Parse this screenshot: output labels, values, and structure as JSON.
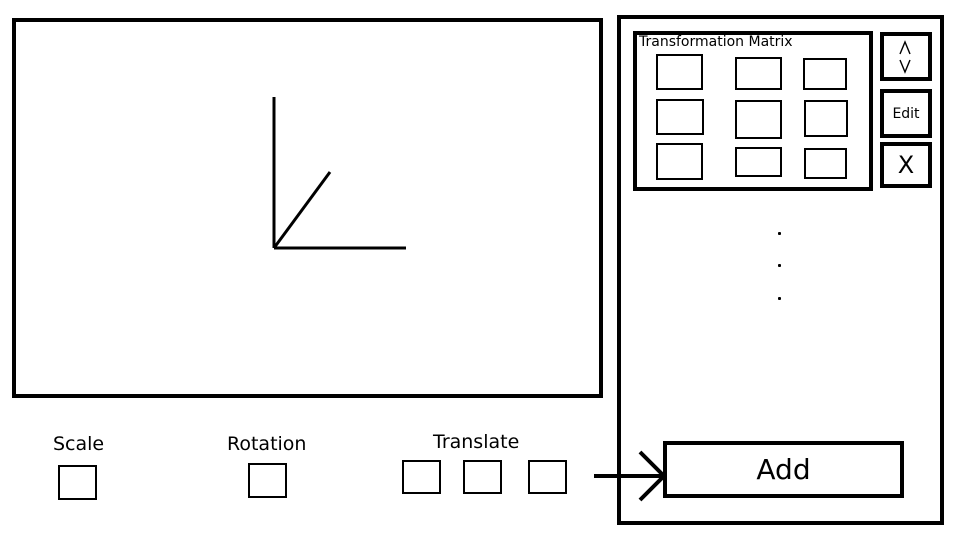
{
  "matrix": {
    "title": "Transformation Matrix",
    "cells": [
      "",
      "",
      "",
      "",
      "",
      "",
      "",
      "",
      ""
    ]
  },
  "side_buttons": {
    "reorder_icon": "up-down-arrows-icon",
    "edit_label": "Edit",
    "close_label": "X"
  },
  "list": {
    "more_indicator": "…"
  },
  "add_button": {
    "label": "Add"
  },
  "controls": {
    "scale_label": "Scale",
    "rotation_label": "Rotation",
    "translate_label": "Translate",
    "scale_value": "",
    "rotation_value": "",
    "translate_values": [
      "",
      "",
      ""
    ]
  },
  "icons": {
    "axes": "axes-icon",
    "arrow": "arrow-right-icon"
  }
}
